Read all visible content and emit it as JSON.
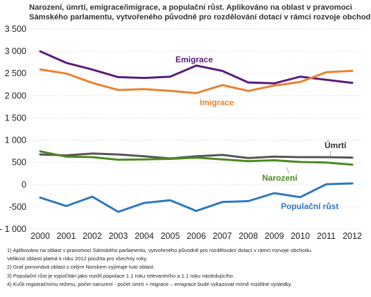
{
  "title_lines": [
    "Narození, úmrtí, emigrace/imigrace, a populační růst. Aplikováno na oblast v pravomoci",
    "Sámského parlamentu, vytvořeného původně pro rozdělování dotací v rámci rozvoje obchodu"
  ],
  "chart_data": {
    "type": "line",
    "title": "Narození, úmrtí, emigrace/imigrace, a populační růst. Aplikováno na oblast v pravomoci Sámského parlamentu, vytvořeného původně pro rozdělování dotací v rámci rozvoje obchodu",
    "x": [
      2000,
      2001,
      2002,
      2003,
      2004,
      2005,
      2006,
      2007,
      2008,
      2009,
      2010,
      2011,
      2012
    ],
    "ylim": [
      -1000,
      3500
    ],
    "yticks": [
      -1000,
      -500,
      0,
      500,
      1000,
      1500,
      2000,
      2500,
      3000,
      3500
    ],
    "ytick_labels": [
      "- 1 000",
      "-500",
      "0",
      "500",
      "1 000",
      "1 500",
      "2 000",
      "2 500",
      "3 000",
      "3 500"
    ],
    "grid": true,
    "legend": "inline labels",
    "series": [
      {
        "name": "Emigrace",
        "color": "#5b1a7a",
        "values": [
          3000,
          2740,
          2590,
          2420,
          2400,
          2430,
          2680,
          2560,
          2300,
          2280,
          2430,
          2360,
          2290
        ]
      },
      {
        "name": "Imigrace",
        "color": "#e8822e",
        "values": [
          2590,
          2500,
          2290,
          2130,
          2150,
          2110,
          2060,
          2240,
          2110,
          2230,
          2310,
          2530,
          2560
        ]
      },
      {
        "name": "Úmrtí",
        "color": "#555555",
        "values": [
          680,
          660,
          700,
          680,
          640,
          590,
          640,
          670,
          600,
          630,
          620,
          620,
          610
        ]
      },
      {
        "name": "Narození",
        "color": "#4a8a1f",
        "values": [
          750,
          630,
          620,
          560,
          570,
          580,
          610,
          570,
          530,
          550,
          510,
          500,
          450
        ]
      },
      {
        "name": "Populační růst",
        "color": "#2b78c2",
        "values": [
          -290,
          -480,
          -270,
          -610,
          -410,
          -350,
          -590,
          -390,
          -370,
          -190,
          -280,
          10,
          30
        ]
      }
    ]
  },
  "notes": [
    "1) Aplikováno na oblast v pravomoci Sámského parlamentu, vytvořeného původně pro rozdělování dotací v rámci rozvoje obchodu.",
    "    Velikost oblasti platná k roku 2012 použita pro všechny roky.",
    "2) Graf porovnává oblast s celým Norskem vyjímaje tuto oblast.",
    "3) Populační růst je vypočítán jako rozdíl populace 1.1 roku relevantního a 1.1 roku následujícího.",
    "4) Kvůli registračnímu režimu, počet narození - počet úmrtí + migrace – emigrace bude vykazovat mírně rozdílné výsledky."
  ]
}
